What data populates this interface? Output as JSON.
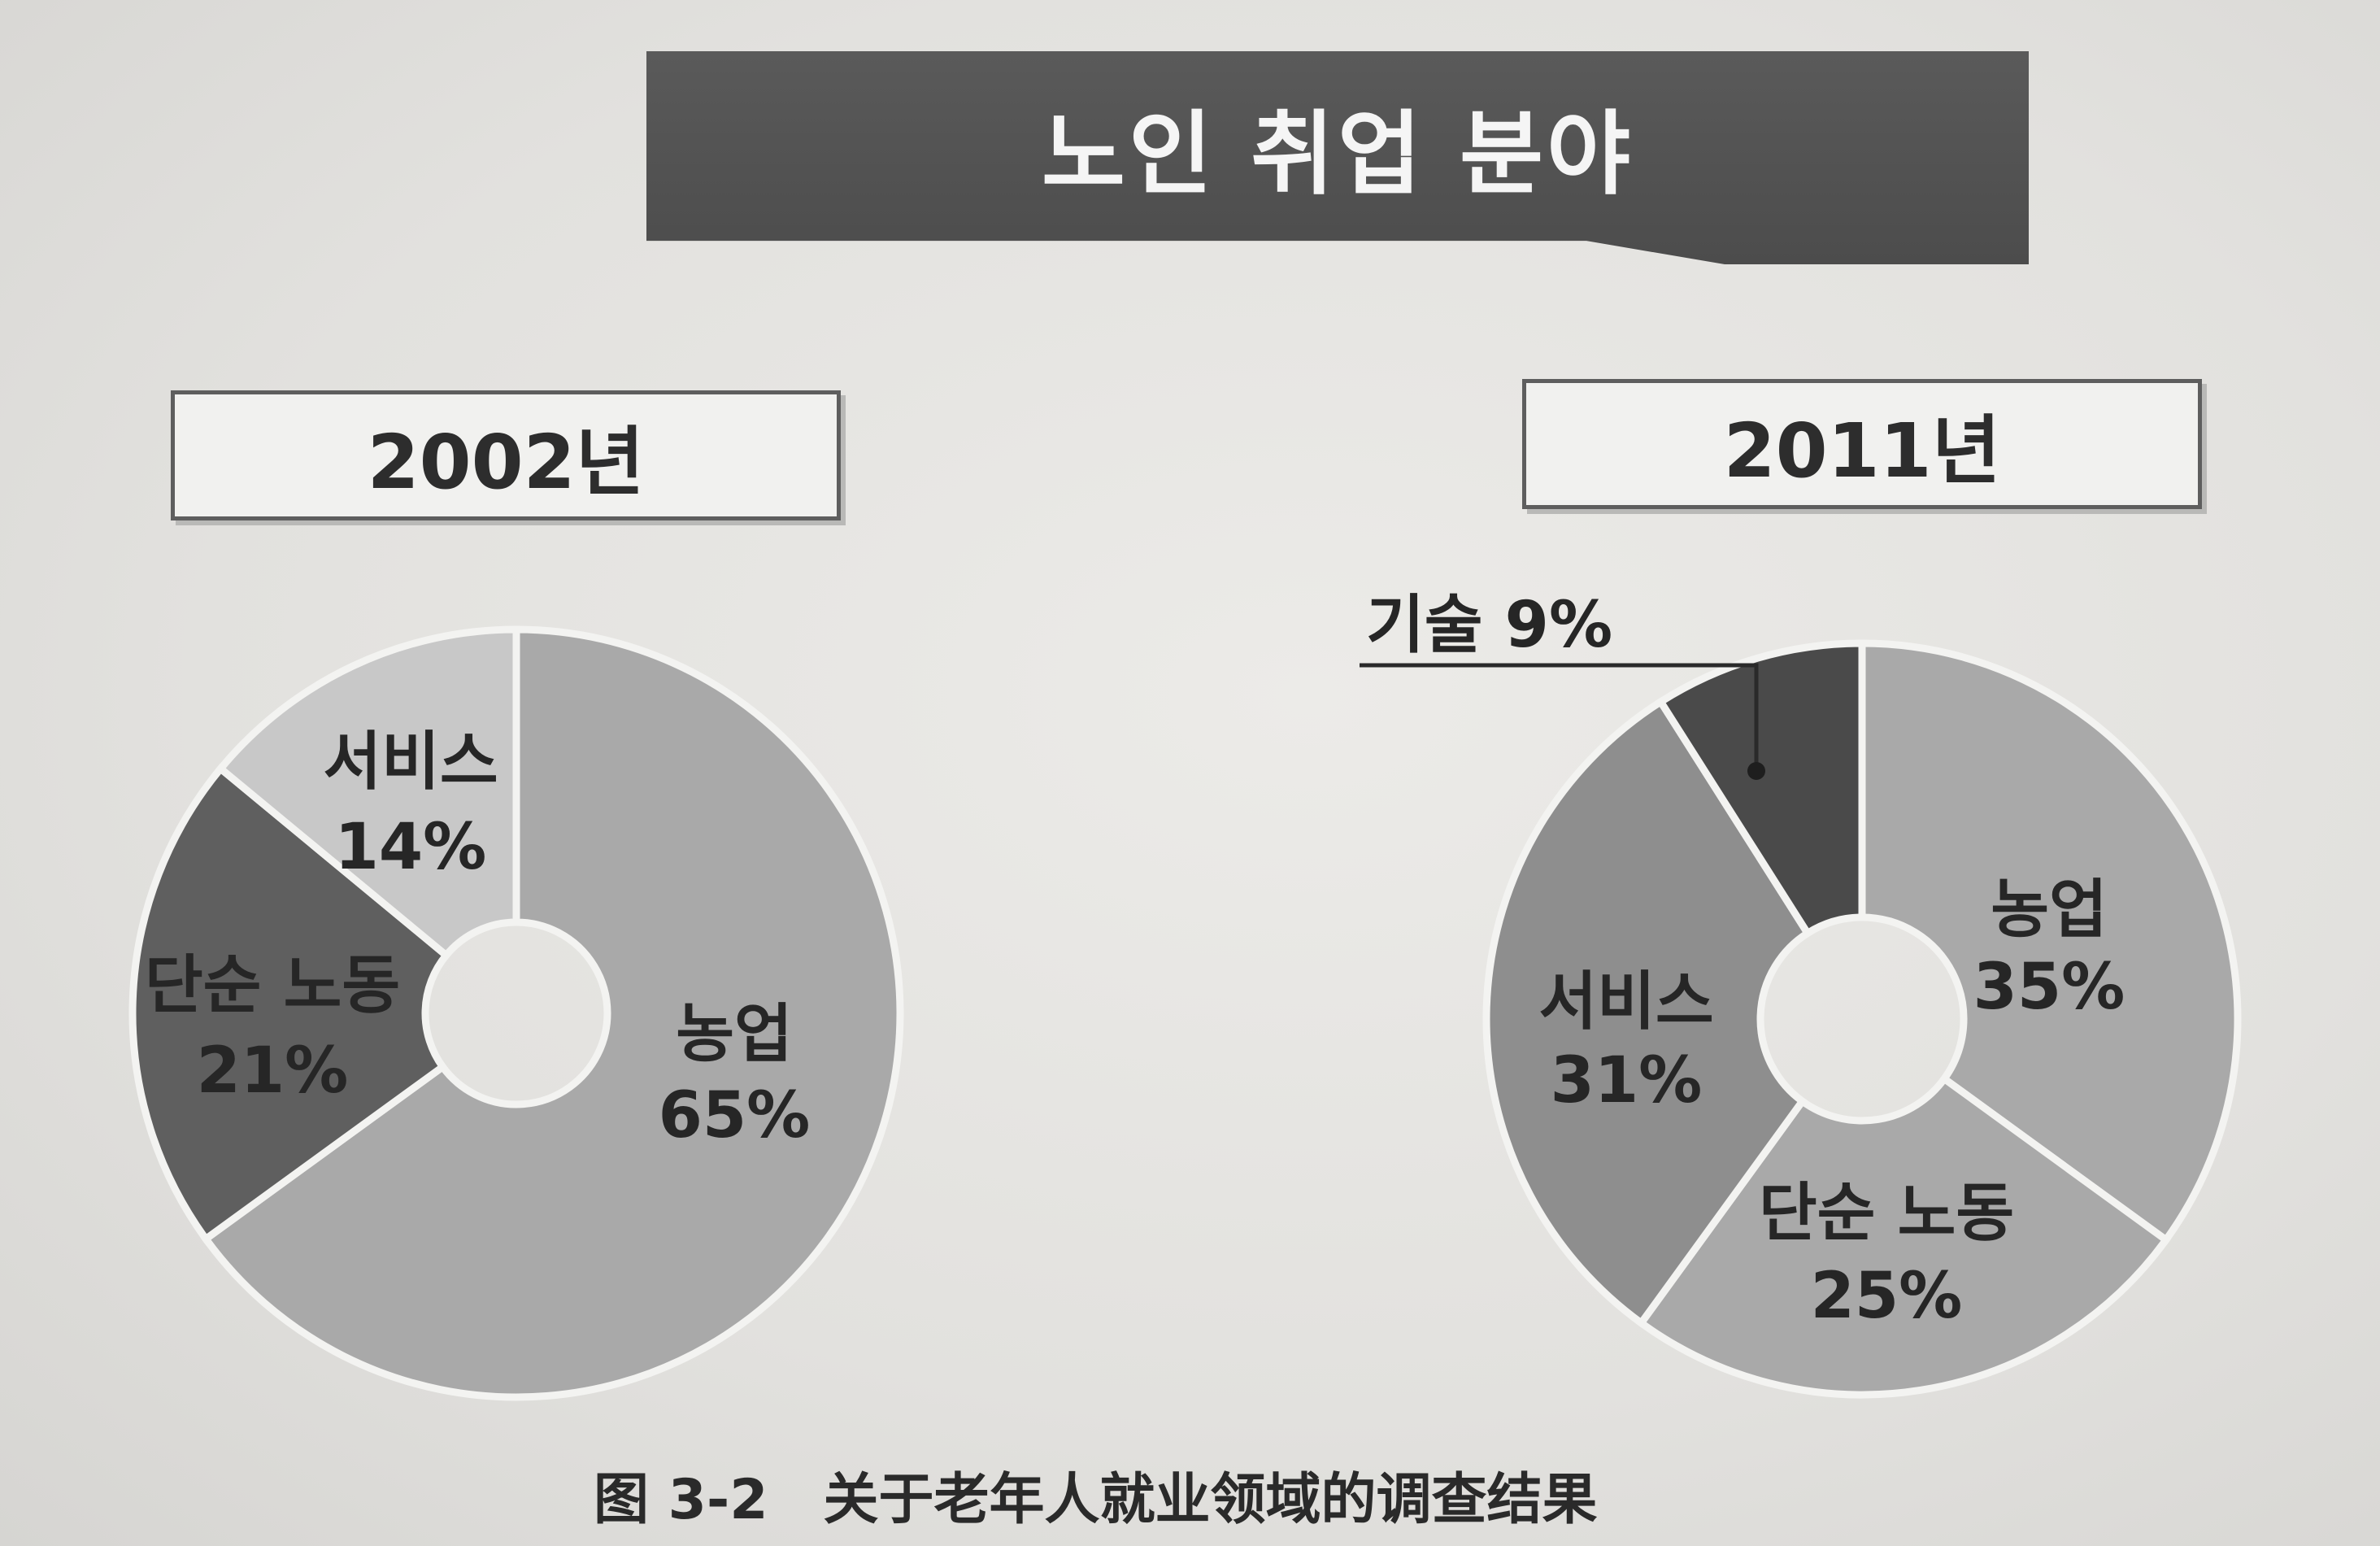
{
  "title": "노인 취업 분야",
  "caption": "图 3-2　关于老年人就业领域的调查结果",
  "colors": {
    "farming": "#a9a9a9",
    "service": "#8e8e8e",
    "labor": "#5f5f5f",
    "service_2002": "#c8c8c8",
    "tech": "#4a4a4a"
  },
  "chart_data": [
    {
      "type": "pie",
      "title": "2002년",
      "series": [
        {
          "name": "농업",
          "value": 65
        },
        {
          "name": "단순 노동",
          "value": 21
        },
        {
          "name": "서비스",
          "value": 14
        }
      ],
      "labels": [
        {
          "name": "농업",
          "pct": "65%"
        },
        {
          "name": "단순 노동",
          "pct": "21%"
        },
        {
          "name": "서비스",
          "pct": "14%"
        }
      ],
      "donut": true
    },
    {
      "type": "pie",
      "title": "2011년",
      "series": [
        {
          "name": "농업",
          "value": 35
        },
        {
          "name": "단순 노동",
          "value": 25
        },
        {
          "name": "서비스",
          "value": 31
        },
        {
          "name": "기술",
          "value": 9
        }
      ],
      "labels": [
        {
          "name": "농업",
          "pct": "35%"
        },
        {
          "name": "단순 노동",
          "pct": "25%"
        },
        {
          "name": "서비스",
          "pct": "31%"
        },
        {
          "name": "기술",
          "pct": "9%"
        }
      ],
      "callout": "기술 9%",
      "donut": true
    }
  ]
}
